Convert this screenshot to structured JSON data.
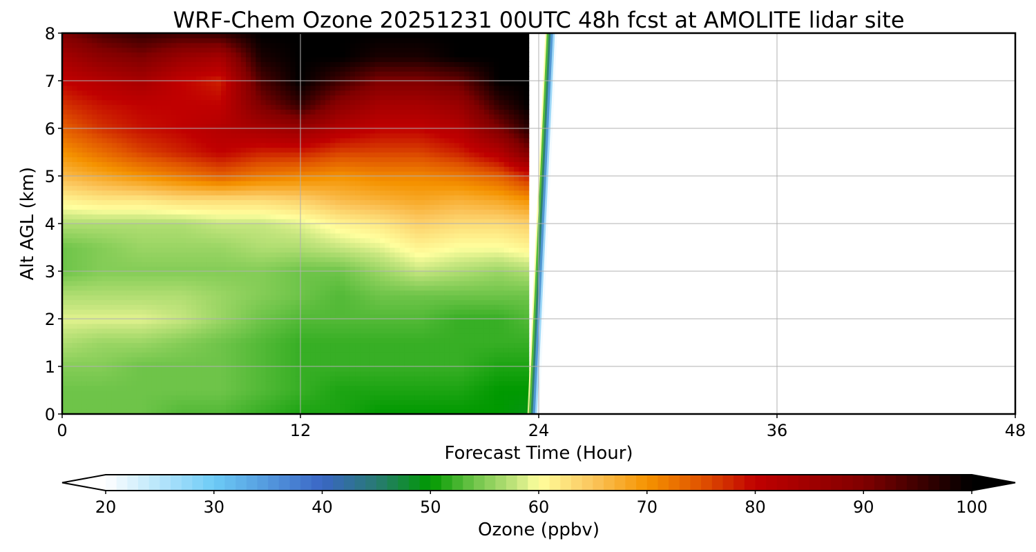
{
  "chart_data": {
    "type": "heatmap",
    "title": "WRF-Chem Ozone  20251231 00UTC 48h fcst at AMOLITE lidar site",
    "xlabel": "Forecast Time (Hour)",
    "ylabel": "Alt AGL (km)",
    "xlim": [
      0,
      48
    ],
    "ylim": [
      0,
      8
    ],
    "x_ticks": [
      "0",
      "12",
      "24",
      "36",
      "48"
    ],
    "y_ticks": [
      "0",
      "1",
      "2",
      "3",
      "4",
      "5",
      "6",
      "7",
      "8"
    ],
    "grid": true,
    "data_end_hour": 23.5,
    "colorbar": {
      "label": "Ozone  (ppbv)",
      "range": [
        20,
        100
      ],
      "extend": "both",
      "ticks": [
        "20",
        "30",
        "40",
        "50",
        "60",
        "70",
        "80",
        "90",
        "100"
      ],
      "stops": [
        {
          "value": 20,
          "color": "#ffffff"
        },
        {
          "value": 30,
          "color": "#6dcbf7"
        },
        {
          "value": 40,
          "color": "#3a66c4"
        },
        {
          "value": 45,
          "color": "#287a73"
        },
        {
          "value": 50,
          "color": "#009900"
        },
        {
          "value": 54,
          "color": "#6ec449"
        },
        {
          "value": 58,
          "color": "#c6e67f"
        },
        {
          "value": 60,
          "color": "#ffff9e"
        },
        {
          "value": 65,
          "color": "#fbc55c"
        },
        {
          "value": 70,
          "color": "#f59300"
        },
        {
          "value": 75,
          "color": "#e05300"
        },
        {
          "value": 80,
          "color": "#c00000"
        },
        {
          "value": 90,
          "color": "#800000"
        },
        {
          "value": 100,
          "color": "#000000"
        }
      ]
    },
    "hours": [
      0,
      2,
      4,
      6,
      8,
      10,
      12,
      14,
      16,
      18,
      20,
      22,
      23.5
    ],
    "altitudes_km": [
      0,
      0.5,
      1,
      1.5,
      2,
      2.5,
      3,
      3.5,
      4,
      4.5,
      5,
      5.5,
      6,
      6.5,
      7,
      7.5,
      8
    ],
    "ozone_ppbv": [
      [
        54,
        54,
        54,
        53,
        53,
        52,
        51,
        51,
        50,
        50,
        50,
        50,
        49
      ],
      [
        54,
        54,
        54,
        54,
        54,
        53,
        52,
        51,
        51,
        51,
        51,
        50,
        50
      ],
      [
        55,
        55,
        54,
        54,
        54,
        53,
        52,
        52,
        52,
        52,
        52,
        51,
        51
      ],
      [
        57,
        56,
        56,
        55,
        54,
        53,
        52,
        52,
        52,
        52,
        52,
        52,
        52
      ],
      [
        59,
        59,
        59,
        58,
        56,
        54,
        53,
        53,
        53,
        53,
        52,
        52,
        53
      ],
      [
        57,
        57,
        57,
        57,
        56,
        55,
        54,
        53,
        54,
        54,
        54,
        54,
        54
      ],
      [
        54,
        55,
        55,
        55,
        55,
        55,
        54,
        54,
        56,
        58,
        57,
        56,
        57
      ],
      [
        54,
        55,
        56,
        56,
        56,
        57,
        57,
        58,
        59,
        61,
        60,
        60,
        61
      ],
      [
        57,
        57,
        57,
        57,
        58,
        58,
        59,
        61,
        62,
        64,
        63,
        63,
        64
      ],
      [
        61,
        62,
        62,
        63,
        63,
        63,
        64,
        66,
        67,
        68,
        67,
        68,
        70
      ],
      [
        66,
        68,
        70,
        72,
        74,
        72,
        71,
        70,
        71,
        71,
        72,
        74,
        78
      ],
      [
        70,
        73,
        76,
        78,
        80,
        78,
        78,
        76,
        76,
        76,
        78,
        82,
        90
      ],
      [
        74,
        77,
        79,
        80,
        82,
        84,
        86,
        82,
        80,
        80,
        82,
        90,
        97
      ],
      [
        77,
        79,
        80,
        80,
        80,
        90,
        96,
        88,
        84,
        84,
        86,
        96,
        100
      ],
      [
        80,
        82,
        84,
        80,
        78,
        94,
        100,
        95,
        90,
        90,
        92,
        100,
        100
      ],
      [
        84,
        88,
        90,
        86,
        84,
        98,
        100,
        100,
        98,
        98,
        100,
        100,
        100
      ],
      [
        90,
        94,
        96,
        95,
        96,
        100,
        100,
        100,
        100,
        100,
        100,
        100,
        100
      ]
    ]
  }
}
